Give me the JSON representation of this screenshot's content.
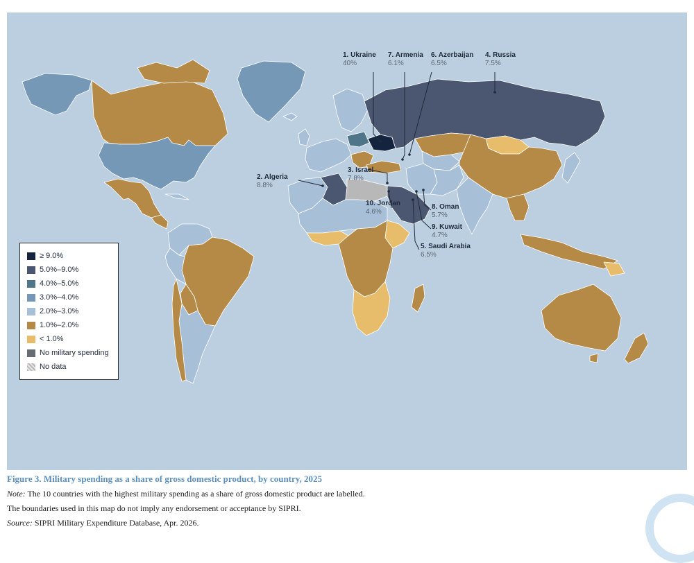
{
  "colors": {
    "ocean": "#bccfe0",
    "ge9": "#14243f",
    "c5to9": "#4b5670",
    "c4to5": "#4f7589",
    "c3to4": "#7498b5",
    "c2to3": "#a8bfd8",
    "c1to2": "#b48a46",
    "lt1": "#e7bd6b",
    "none": "#676b72",
    "nodata": "#b8b8b8"
  },
  "legend": [
    {
      "label": "≥ 9.0%",
      "color": "#14243f",
      "icon": "swatch-solid"
    },
    {
      "label": "5.0%–9.0%",
      "color": "#4b5670",
      "icon": "swatch-solid"
    },
    {
      "label": "4.0%–5.0%",
      "color": "#4f7589",
      "icon": "swatch-solid"
    },
    {
      "label": "3.0%–4.0%",
      "color": "#7498b5",
      "icon": "swatch-solid"
    },
    {
      "label": "2.0%–3.0%",
      "color": "#a8bfd8",
      "icon": "swatch-solid"
    },
    {
      "label": "1.0%–2.0%",
      "color": "#b48a46",
      "icon": "swatch-solid"
    },
    {
      "label": "< 1.0%",
      "color": "#e7bd6b",
      "icon": "swatch-solid"
    },
    {
      "label": "No military spending",
      "color": "#676b72",
      "icon": "swatch-solid"
    },
    {
      "label": "No data",
      "color": "#b8b8b8",
      "icon": "swatch-hatched"
    }
  ],
  "callouts": [
    {
      "name": "1. Ukraine",
      "value": "40%"
    },
    {
      "name": "7. Armenia",
      "value": "6.1%"
    },
    {
      "name": "6. Azerbaijan",
      "value": "6.5%"
    },
    {
      "name": "4. Russia",
      "value": "7.5%"
    },
    {
      "name": "2. Algeria",
      "value": "8.8%"
    },
    {
      "name": "3. Israel",
      "value": "7.8%"
    },
    {
      "name": "10. Jordan",
      "value": "4.6%"
    },
    {
      "name": "8. Oman",
      "value": "5.7%"
    },
    {
      "name": "9. Kuwait",
      "value": "4.7%"
    },
    {
      "name": "5. Saudi Arabia",
      "value": "6.5%"
    }
  ],
  "caption": {
    "title": "Figure 3. Military spending as a share of gross domestic product, by country, 2025",
    "note_label": "Note:",
    "note_text": " The 10 countries with the highest military spending as a share of gross domestic product are labelled.",
    "boundaries": "The boundaries used in this map do not imply any endorsement or acceptance by SIPRI.",
    "source_label": "Source:",
    "source_text": " SIPRI Military Expenditure Database, Apr. 2026."
  }
}
